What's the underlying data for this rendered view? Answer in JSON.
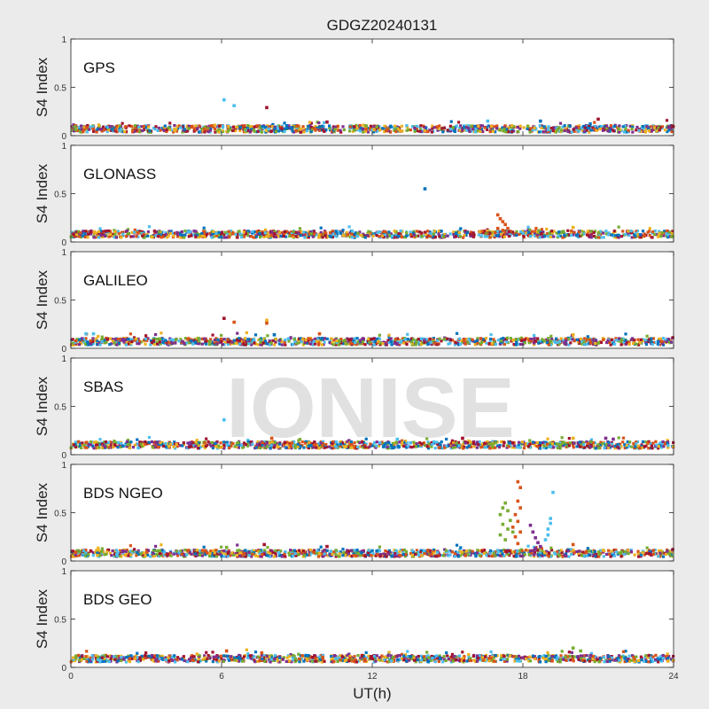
{
  "title": "GDGZ20240131",
  "watermark": "IONISE",
  "chart_data": {
    "type": "scatter",
    "xlabel": "UT(h)",
    "ylabel": "S4 Index",
    "xlim": [
      0,
      24
    ],
    "ylim": [
      0,
      1
    ],
    "xticks": [
      0,
      6,
      12,
      18,
      24
    ],
    "xtick_labels": [
      "0",
      "6",
      "12",
      "18",
      "24"
    ],
    "yticks": [
      0,
      0.5,
      1
    ],
    "ytick_labels": [
      "0",
      "0.5",
      "1"
    ],
    "grid": false,
    "series_colors": [
      "#0072BD",
      "#D95319",
      "#EDB120",
      "#7E2F8E",
      "#77AC30",
      "#4DBEEE",
      "#A2142F"
    ],
    "panels": [
      {
        "label": "GPS",
        "baseline": 0.07,
        "outliers": [
          {
            "x": 6.1,
            "y": 0.37,
            "c": 5
          },
          {
            "x": 6.5,
            "y": 0.31,
            "c": 5
          },
          {
            "x": 7.8,
            "y": 0.29,
            "c": 6
          },
          {
            "x": 10.2,
            "y": 0.14,
            "c": 6
          },
          {
            "x": 16.6,
            "y": 0.15,
            "c": 5
          },
          {
            "x": 18.7,
            "y": 0.15,
            "c": 0
          },
          {
            "x": 21.0,
            "y": 0.17,
            "c": 6
          }
        ]
      },
      {
        "label": "GLONASS",
        "baseline": 0.08,
        "outliers": [
          {
            "x": 14.1,
            "y": 0.55,
            "c": 0
          },
          {
            "x": 17.0,
            "y": 0.28,
            "c": 1
          },
          {
            "x": 17.1,
            "y": 0.24,
            "c": 1
          },
          {
            "x": 17.2,
            "y": 0.21,
            "c": 1
          },
          {
            "x": 17.3,
            "y": 0.18,
            "c": 1
          },
          {
            "x": 17.0,
            "y": 0.14,
            "c": 1
          },
          {
            "x": 17.2,
            "y": 0.12,
            "c": 1
          },
          {
            "x": 17.4,
            "y": 0.14,
            "c": 1
          },
          {
            "x": 20.0,
            "y": 0.15,
            "c": 2
          }
        ]
      },
      {
        "label": "GALILEO",
        "baseline": 0.07,
        "outliers": [
          {
            "x": 6.1,
            "y": 0.31,
            "c": 6
          },
          {
            "x": 6.5,
            "y": 0.27,
            "c": 1
          },
          {
            "x": 7.8,
            "y": 0.29,
            "c": 2
          },
          {
            "x": 7.8,
            "y": 0.26,
            "c": 1
          },
          {
            "x": 8.1,
            "y": 0.14,
            "c": 0
          },
          {
            "x": 0.6,
            "y": 0.15,
            "c": 5
          },
          {
            "x": 0.9,
            "y": 0.15,
            "c": 5
          },
          {
            "x": 20.0,
            "y": 0.14,
            "c": 2
          },
          {
            "x": 9.9,
            "y": 0.15,
            "c": 1
          }
        ]
      },
      {
        "label": "SBAS",
        "baseline": 0.1,
        "outliers": [
          {
            "x": 6.1,
            "y": 0.36,
            "c": 5
          },
          {
            "x": 8.0,
            "y": 0.17,
            "c": 1
          },
          {
            "x": 13.0,
            "y": 0.16,
            "c": 5
          },
          {
            "x": 15.6,
            "y": 0.17,
            "c": 6
          },
          {
            "x": 20.0,
            "y": 0.17,
            "c": 2
          },
          {
            "x": 21.3,
            "y": 0.17,
            "c": 3
          },
          {
            "x": 21.6,
            "y": 0.16,
            "c": 3
          }
        ]
      },
      {
        "label": "BDS NGEO",
        "baseline": 0.08,
        "outliers": [
          {
            "x": 17.1,
            "y": 0.48,
            "c": 4
          },
          {
            "x": 17.2,
            "y": 0.55,
            "c": 4
          },
          {
            "x": 17.3,
            "y": 0.6,
            "c": 4
          },
          {
            "x": 17.4,
            "y": 0.52,
            "c": 4
          },
          {
            "x": 17.2,
            "y": 0.38,
            "c": 4
          },
          {
            "x": 17.4,
            "y": 0.33,
            "c": 4
          },
          {
            "x": 17.1,
            "y": 0.27,
            "c": 4
          },
          {
            "x": 17.3,
            "y": 0.22,
            "c": 4
          },
          {
            "x": 17.5,
            "y": 0.42,
            "c": 4
          },
          {
            "x": 17.6,
            "y": 0.3,
            "c": 4
          },
          {
            "x": 17.8,
            "y": 0.82,
            "c": 1
          },
          {
            "x": 17.9,
            "y": 0.76,
            "c": 1
          },
          {
            "x": 17.8,
            "y": 0.62,
            "c": 1
          },
          {
            "x": 17.9,
            "y": 0.55,
            "c": 1
          },
          {
            "x": 17.7,
            "y": 0.48,
            "c": 1
          },
          {
            "x": 17.8,
            "y": 0.41,
            "c": 1
          },
          {
            "x": 17.6,
            "y": 0.35,
            "c": 1
          },
          {
            "x": 17.9,
            "y": 0.3,
            "c": 1
          },
          {
            "x": 17.7,
            "y": 0.25,
            "c": 1
          },
          {
            "x": 17.8,
            "y": 0.18,
            "c": 1
          },
          {
            "x": 18.3,
            "y": 0.37,
            "c": 3
          },
          {
            "x": 18.4,
            "y": 0.3,
            "c": 3
          },
          {
            "x": 18.5,
            "y": 0.24,
            "c": 3
          },
          {
            "x": 18.6,
            "y": 0.19,
            "c": 3
          },
          {
            "x": 18.7,
            "y": 0.15,
            "c": 3
          },
          {
            "x": 18.5,
            "y": 0.13,
            "c": 3
          },
          {
            "x": 19.2,
            "y": 0.71,
            "c": 5
          },
          {
            "x": 19.1,
            "y": 0.44,
            "c": 5
          },
          {
            "x": 19.1,
            "y": 0.39,
            "c": 5
          },
          {
            "x": 19.0,
            "y": 0.33,
            "c": 5
          },
          {
            "x": 19.0,
            "y": 0.27,
            "c": 5
          },
          {
            "x": 18.9,
            "y": 0.22,
            "c": 5
          },
          {
            "x": 20.0,
            "y": 0.17,
            "c": 1
          },
          {
            "x": 6.2,
            "y": 0.14,
            "c": 4
          },
          {
            "x": 7.7,
            "y": 0.17,
            "c": 6
          },
          {
            "x": 10.2,
            "y": 0.15,
            "c": 6
          }
        ]
      },
      {
        "label": "BDS GEO",
        "baseline": 0.09,
        "outliers": [
          {
            "x": 6.2,
            "y": 0.17,
            "c": 1
          },
          {
            "x": 7.6,
            "y": 0.15,
            "c": 1
          },
          {
            "x": 20.0,
            "y": 0.2,
            "c": 4
          },
          {
            "x": 20.3,
            "y": 0.17,
            "c": 4
          }
        ]
      }
    ]
  }
}
